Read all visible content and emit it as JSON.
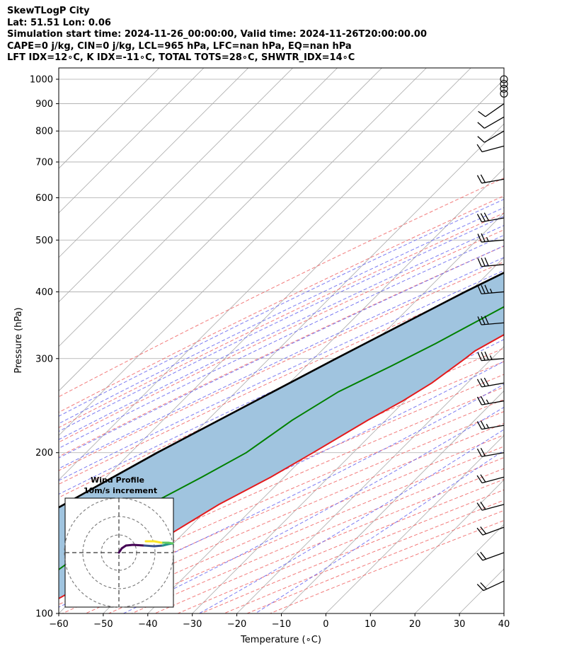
{
  "header": {
    "line1": "SkewTLogP City",
    "line2": "Lat: 51.51   Lon: 0.06",
    "line3": "Simulation start time: 2024-11-26_00:00:00, Valid time: 2024-11-26T20:00:00.00",
    "line4": "CAPE=0 j/kg, CIN=0 j/kg, LCL=965 hPa, LFC=nan hPa, EQ=nan hPa",
    "line5": "LFT IDX=12∘C, K IDX=-11∘C, TOTAL TOTS=28∘C, SHWTR_IDX=14∘C"
  },
  "chart_data": {
    "type": "skewt",
    "xlabel": "Temperature (∘C)",
    "ylabel": "Pressure (hPa)",
    "xlim": [
      -60,
      40
    ],
    "ylim": [
      1050,
      100
    ],
    "yscale": "log",
    "skew": 45,
    "grid": true,
    "x_ticks": [
      -60,
      -50,
      -40,
      -30,
      -20,
      -10,
      0,
      10,
      20,
      30,
      40
    ],
    "x_tick_labels": [
      "−60",
      "−50",
      "−40",
      "−30",
      "−20",
      "−10",
      "0",
      "10",
      "20",
      "30",
      "40"
    ],
    "y_ticks": [
      100,
      200,
      300,
      400,
      500,
      600,
      700,
      800,
      900,
      1000
    ],
    "y_tick_labels": [
      "100",
      "200",
      "300",
      "400",
      "500",
      "600",
      "700",
      "800",
      "900",
      "1000"
    ],
    "colors": {
      "temperature": "#e41a1c",
      "dewpoint": "#008000",
      "parcel": "#000000",
      "cin_fill": "#a0c4df",
      "dry_adiabat": "#f06464",
      "moist_adiabat": "#6464f0",
      "mixing_ratio": "#9933cc",
      "isotherm": "#aaaaaa"
    },
    "temperature_profile": {
      "pressure": [
        1010,
        1000,
        975,
        950,
        925,
        900,
        850,
        800,
        750,
        700,
        650,
        600,
        550,
        500,
        450,
        400,
        350,
        310,
        300,
        270,
        250,
        230,
        200,
        180,
        160,
        140,
        120,
        100
      ],
      "temp": [
        8,
        7,
        6.5,
        6,
        5,
        4,
        2.5,
        0.5,
        -1,
        -2.5,
        -3.5,
        -4,
        -5.5,
        -8,
        -11.5,
        -15,
        -20.5,
        -25.5,
        -26,
        -28,
        -30.5,
        -34,
        -39,
        -43,
        -48.5,
        -53,
        -58.5,
        -66
      ]
    },
    "dewpoint_profile": {
      "pressure": [
        1010,
        1000,
        975,
        950,
        900,
        850,
        800,
        750,
        700,
        680,
        650,
        620,
        600,
        550,
        500,
        450,
        400,
        350,
        320,
        290,
        260,
        230,
        200,
        180,
        160,
        140,
        120,
        100
      ],
      "dewpt": [
        5.5,
        5,
        3,
        1,
        -5,
        -11,
        -17,
        -18,
        -22,
        -32,
        -16,
        -13,
        -12.5,
        -14,
        -17,
        -21,
        -26,
        -32,
        -36,
        -41,
        -47,
        -51,
        -54,
        -58.5,
        -64,
        -67,
        -70,
        -73
      ]
    },
    "parcel_profile": {
      "pressure": [
        1010,
        965,
        900,
        800,
        700,
        600,
        500,
        400,
        300,
        200,
        150,
        100
      ],
      "temp": [
        8,
        5.5,
        2,
        -4,
        -11.5,
        -19.5,
        -29,
        -41,
        -55,
        -74,
        -86,
        -101
      ]
    },
    "wind_barbs": {
      "pressure": [
        1000,
        980,
        960,
        940,
        900,
        850,
        800,
        750,
        650,
        550,
        500,
        450,
        400,
        350,
        300,
        270,
        250,
        225,
        200,
        180,
        160,
        145,
        130,
        115
      ],
      "speed_kt": [
        0,
        0,
        0,
        0,
        10,
        10,
        10,
        10,
        20,
        30,
        25,
        30,
        35,
        30,
        35,
        30,
        25,
        25,
        20,
        20,
        20,
        20,
        20,
        20
      ],
      "direction_deg": [
        0,
        0,
        0,
        0,
        235,
        240,
        240,
        255,
        260,
        260,
        265,
        265,
        265,
        265,
        265,
        260,
        260,
        260,
        260,
        255,
        255,
        250,
        250,
        245
      ]
    },
    "inset": {
      "title": "Wind Profile",
      "subtitle": "10m/s increment",
      "hodograph_colors": [
        "#440154",
        "#3b528b",
        "#21918c",
        "#5ec962",
        "#fde725"
      ]
    }
  }
}
